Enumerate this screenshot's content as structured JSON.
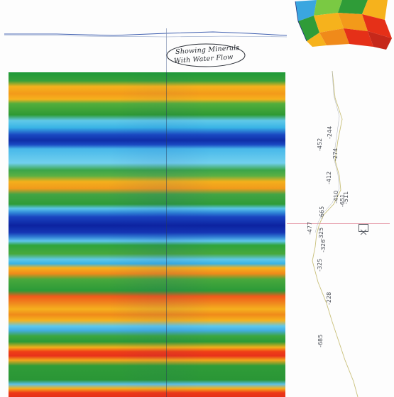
{
  "annotation": {
    "line1": "Showing Minerals",
    "line2": "With Water Flow"
  },
  "colors": {
    "deep_blue": "#0f2fa8",
    "light_blue": "#5fc8ea",
    "green": "#2f9c38",
    "yellow": "#f6b21c",
    "orange": "#f08a1a",
    "red": "#e53018",
    "crosshair_pink": "#e59aa8"
  },
  "depth_labels": [
    {
      "text": "-452"
    },
    {
      "text": "-244"
    },
    {
      "text": "-274"
    },
    {
      "text": "-412"
    },
    {
      "text": "-651"
    },
    {
      "text": "-665"
    },
    {
      "text": "-410"
    },
    {
      "text": "-511"
    },
    {
      "text": "-477"
    },
    {
      "text": "-325"
    },
    {
      "text": "-326"
    },
    {
      "text": "-325"
    },
    {
      "text": "-228"
    },
    {
      "text": "-685"
    }
  ]
}
